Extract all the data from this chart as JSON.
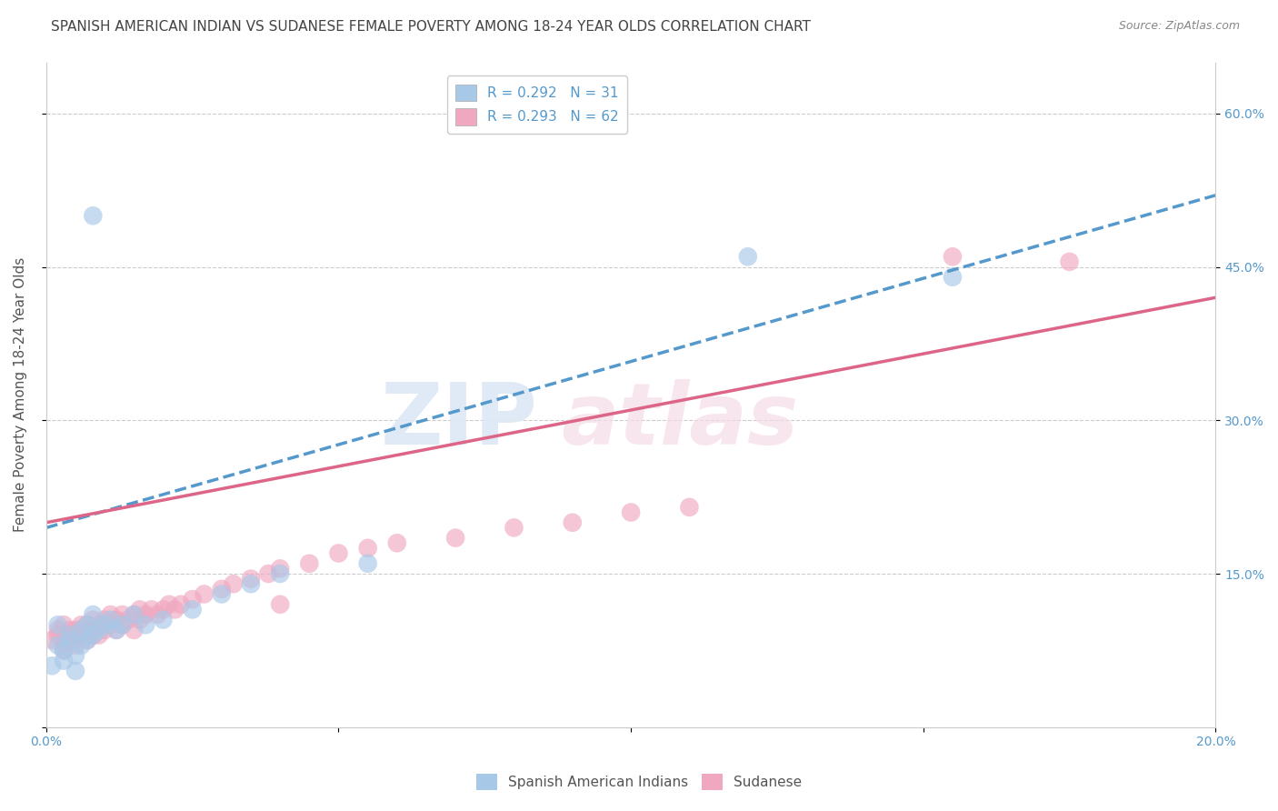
{
  "title": "SPANISH AMERICAN INDIAN VS SUDANESE FEMALE POVERTY AMONG 18-24 YEAR OLDS CORRELATION CHART",
  "source": "Source: ZipAtlas.com",
  "ylabel": "Female Poverty Among 18-24 Year Olds",
  "xlim": [
    0.0,
    0.2
  ],
  "ylim": [
    0.0,
    0.65
  ],
  "blue_R": 0.292,
  "blue_N": 31,
  "pink_R": 0.293,
  "pink_N": 62,
  "blue_color": "#a8c8e8",
  "pink_color": "#f0a8c0",
  "blue_line_color": "#5599cc",
  "pink_line_color": "#dd6688",
  "background_color": "#ffffff",
  "grid_color": "#cccccc",
  "title_fontsize": 11,
  "label_fontsize": 11,
  "tick_fontsize": 10,
  "legend_fontsize": 11,
  "tick_color": "#5599cc",
  "blue_x": [
    0.001,
    0.002,
    0.002,
    0.003,
    0.003,
    0.004,
    0.004,
    0.005,
    0.005,
    0.006,
    0.006,
    0.007,
    0.007,
    0.008,
    0.008,
    0.009,
    0.01,
    0.011,
    0.012,
    0.013,
    0.015,
    0.017,
    0.02,
    0.025,
    0.03,
    0.035,
    0.04,
    0.055,
    0.008,
    0.12,
    0.155
  ],
  "blue_y": [
    0.06,
    0.08,
    0.1,
    0.075,
    0.065,
    0.085,
    0.09,
    0.055,
    0.07,
    0.08,
    0.095,
    0.085,
    0.1,
    0.09,
    0.11,
    0.095,
    0.1,
    0.105,
    0.095,
    0.1,
    0.11,
    0.1,
    0.105,
    0.115,
    0.13,
    0.14,
    0.15,
    0.16,
    0.5,
    0.46,
    0.44
  ],
  "pink_x": [
    0.001,
    0.002,
    0.002,
    0.003,
    0.003,
    0.003,
    0.004,
    0.004,
    0.004,
    0.005,
    0.005,
    0.005,
    0.006,
    0.006,
    0.006,
    0.007,
    0.007,
    0.007,
    0.008,
    0.008,
    0.008,
    0.009,
    0.009,
    0.01,
    0.01,
    0.011,
    0.011,
    0.012,
    0.012,
    0.013,
    0.013,
    0.014,
    0.015,
    0.015,
    0.016,
    0.016,
    0.017,
    0.018,
    0.019,
    0.02,
    0.021,
    0.022,
    0.023,
    0.025,
    0.027,
    0.03,
    0.032,
    0.035,
    0.038,
    0.04,
    0.045,
    0.05,
    0.055,
    0.06,
    0.07,
    0.08,
    0.09,
    0.1,
    0.11,
    0.155,
    0.175,
    0.04
  ],
  "pink_y": [
    0.085,
    0.09,
    0.095,
    0.08,
    0.075,
    0.1,
    0.085,
    0.09,
    0.095,
    0.08,
    0.085,
    0.095,
    0.09,
    0.095,
    0.1,
    0.085,
    0.09,
    0.1,
    0.09,
    0.095,
    0.105,
    0.09,
    0.1,
    0.095,
    0.105,
    0.1,
    0.11,
    0.095,
    0.105,
    0.1,
    0.11,
    0.105,
    0.095,
    0.11,
    0.105,
    0.115,
    0.11,
    0.115,
    0.11,
    0.115,
    0.12,
    0.115,
    0.12,
    0.125,
    0.13,
    0.135,
    0.14,
    0.145,
    0.15,
    0.155,
    0.16,
    0.17,
    0.175,
    0.18,
    0.185,
    0.195,
    0.2,
    0.21,
    0.215,
    0.46,
    0.455,
    0.12
  ],
  "blue_line_x0": 0.0,
  "blue_line_y0": 0.195,
  "blue_line_x1": 0.2,
  "blue_line_y1": 0.52,
  "pink_line_x0": 0.0,
  "pink_line_y0": 0.2,
  "pink_line_x1": 0.2,
  "pink_line_y1": 0.42
}
